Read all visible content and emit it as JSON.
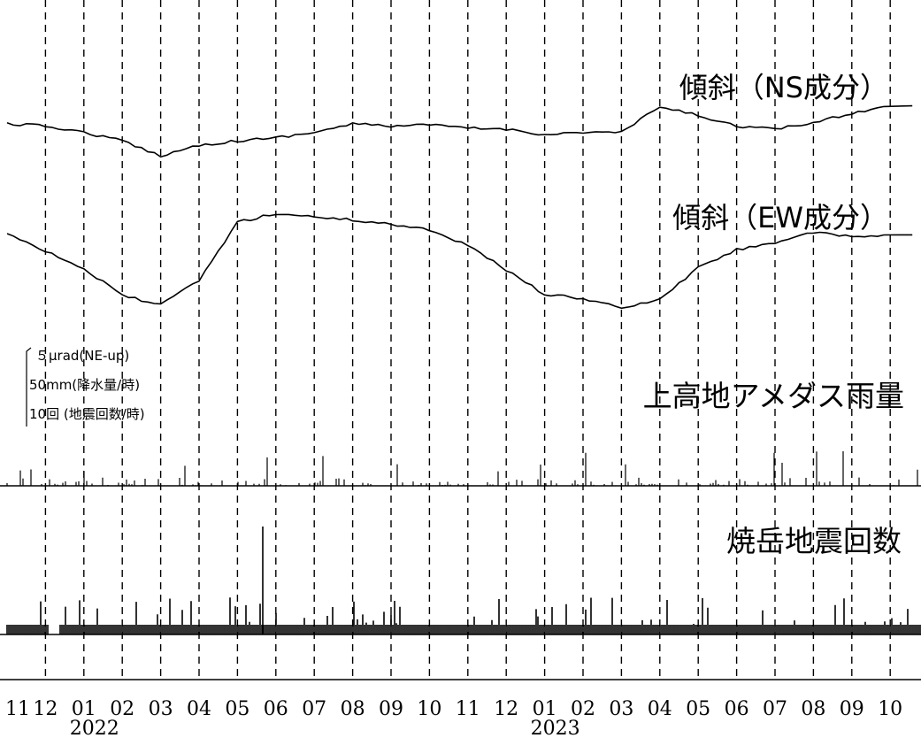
{
  "chart_data": {
    "type": "line",
    "x_tick_labels": [
      "11",
      "12",
      "01",
      "02",
      "03",
      "04",
      "05",
      "06",
      "07",
      "08",
      "09",
      "10",
      "11",
      "12",
      "01",
      "02",
      "03",
      "04",
      "05",
      "06",
      "07",
      "08",
      "09",
      "10"
    ],
    "year_labels": [
      {
        "label": "2022",
        "tick_index": 2
      },
      {
        "label": "2023",
        "tick_index": 14
      }
    ],
    "grid": "vertical dashed at each month",
    "scale_bar": {
      "line1": "５μrad(NE-up)",
      "line2": "50mm(降水量/時)",
      "line3": "10回 (地震回数/時)"
    },
    "series": [
      {
        "name": "傾斜（NS成分）",
        "unit": "μrad",
        "month_values": [
          0.0,
          -0.2,
          -0.8,
          -1.6,
          -3.0,
          -2.0,
          -1.6,
          -1.3,
          -0.8,
          0.0,
          -0.2,
          -0.1,
          -0.4,
          -0.5,
          -1.0,
          -0.8,
          -0.8,
          1.6,
          0.8,
          -0.2,
          -0.5,
          0.1,
          1.0,
          1.7
        ]
      },
      {
        "name": "傾斜（EW成分）",
        "unit": "μrad",
        "month_values": [
          0.0,
          -1.7,
          -3.4,
          -5.9,
          -6.8,
          -4.5,
          1.0,
          1.8,
          1.5,
          1.2,
          0.8,
          0.3,
          -1.2,
          -3.5,
          -5.8,
          -6.2,
          -7.1,
          -6.3,
          -3.3,
          -1.6,
          -0.9,
          0.0,
          -0.4,
          -0.2
        ]
      },
      {
        "name": "上高地アメダス雨量",
        "unit": "mm/時",
        "type": "bar",
        "note": "hourly precipitation, mostly below 12 mm/h with peaks near 27 mm/h in 2023-08"
      },
      {
        "name": "焼岳地震回数",
        "unit": "回/時",
        "type": "bar",
        "note": "hourly earthquake count, baseline about 1-2 with a peak near 14 in early 2022-06"
      }
    ]
  }
}
